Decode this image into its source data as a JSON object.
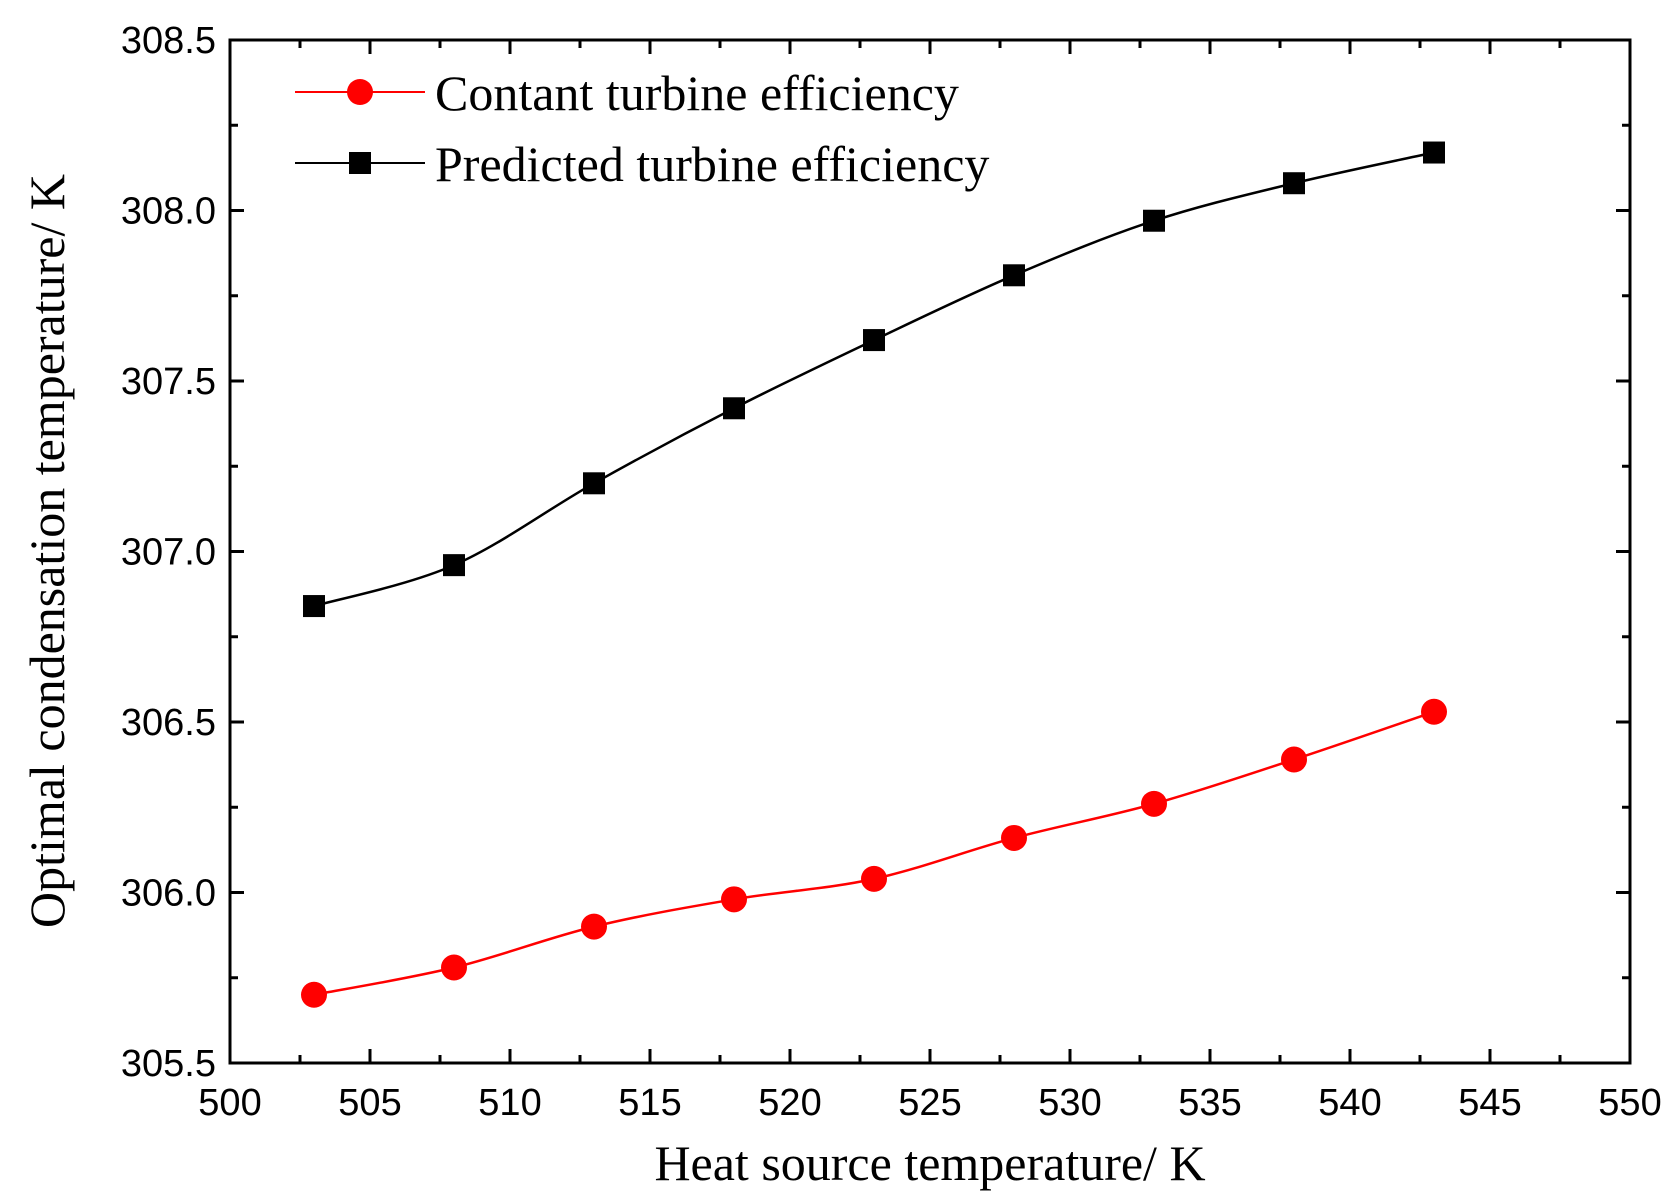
{
  "chart_data": {
    "type": "line",
    "xlabel": "Heat source temperature/ K",
    "ylabel": "Optimal condensation temperature/ K",
    "xlim": [
      500,
      550
    ],
    "ylim": [
      305.5,
      308.5
    ],
    "x_ticks": [
      "500",
      "505",
      "510",
      "515",
      "520",
      "525",
      "530",
      "535",
      "540",
      "545",
      "550"
    ],
    "y_ticks": [
      "305.5",
      "306.0",
      "306.5",
      "307.0",
      "307.5",
      "308.0",
      "308.5"
    ],
    "legend_position": "top-left",
    "x": [
      503,
      508,
      513,
      518,
      523,
      528,
      533,
      538,
      543
    ],
    "series": [
      {
        "name": "Contant turbine efficiency",
        "color": "#ff0000",
        "marker": "circle",
        "values": [
          305.7,
          305.78,
          305.9,
          305.98,
          306.04,
          306.16,
          306.26,
          306.39,
          306.53
        ]
      },
      {
        "name": "Predicted turbine efficiency",
        "color": "#000000",
        "marker": "square",
        "values": [
          306.84,
          306.96,
          307.2,
          307.42,
          307.62,
          307.81,
          307.97,
          308.08,
          308.17
        ]
      }
    ]
  }
}
